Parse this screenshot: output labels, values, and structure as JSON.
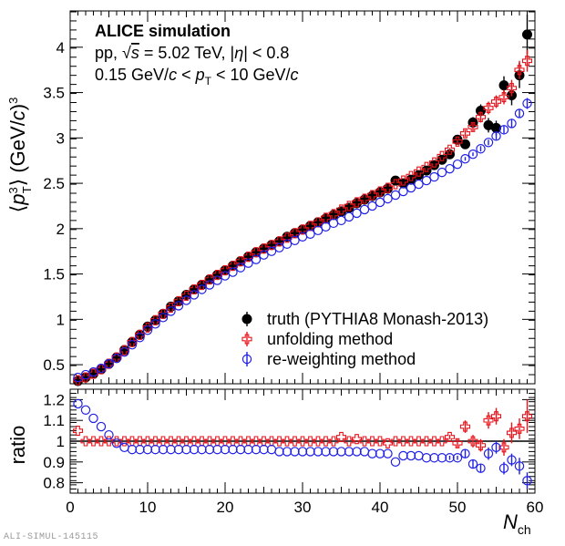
{
  "annotations": {
    "title": "ALICE simulation",
    "line1": "pp, √s = 5.02 TeV, |η| < 0.8",
    "line2": "0.15 GeV/c < pT < 10 GeV/c"
  },
  "footer_id": "ALI-SIMUL-145115",
  "chart_data": [
    {
      "type": "scatter",
      "panel": "main",
      "ylabel": "⟨pT³⟩ (GeV/c)³",
      "xlim": [
        0,
        60
      ],
      "ylim": [
        0.29,
        4.4
      ],
      "x_ticks": [
        0,
        10,
        20,
        30,
        40,
        50,
        60
      ],
      "y_ticks": [
        0.5,
        1,
        1.5,
        2,
        2.5,
        3,
        3.5,
        4
      ],
      "y_tick_labels": [
        "0.5",
        "1",
        "1.5",
        "2",
        "2.5",
        "3",
        "3.5",
        "4"
      ],
      "legend_position": "bottom-right",
      "series": [
        {
          "name": "truth (PYTHIA8 Monash-2013)",
          "marker": "filled-circle",
          "color": "#000000",
          "x": [
            1,
            2,
            3,
            4,
            5,
            6,
            7,
            8,
            9,
            10,
            11,
            12,
            13,
            14,
            15,
            16,
            17,
            18,
            19,
            20,
            21,
            22,
            23,
            24,
            25,
            26,
            27,
            28,
            29,
            30,
            31,
            32,
            33,
            34,
            35,
            36,
            37,
            38,
            39,
            40,
            41,
            42,
            43,
            44,
            45,
            46,
            47,
            48,
            49,
            50,
            51,
            52,
            53,
            54,
            55,
            56,
            57,
            58,
            59
          ],
          "y": [
            0.32,
            0.36,
            0.4,
            0.45,
            0.51,
            0.58,
            0.66,
            0.75,
            0.83,
            0.92,
            0.99,
            1.06,
            1.14,
            1.2,
            1.27,
            1.33,
            1.38,
            1.44,
            1.49,
            1.54,
            1.59,
            1.64,
            1.69,
            1.74,
            1.78,
            1.82,
            1.86,
            1.91,
            1.95,
            1.99,
            2.03,
            2.07,
            2.11,
            2.15,
            2.19,
            2.23,
            2.28,
            2.32,
            2.36,
            2.4,
            2.44,
            2.53,
            2.5,
            2.54,
            2.59,
            2.64,
            2.7,
            2.76,
            2.82,
            2.98,
            2.93,
            3.17,
            3.3,
            3.14,
            3.11,
            3.58,
            3.47,
            3.69,
            4.14
          ],
          "yerr": [
            0,
            0,
            0,
            0,
            0,
            0,
            0,
            0,
            0,
            0,
            0,
            0,
            0,
            0,
            0,
            0,
            0,
            0,
            0,
            0,
            0,
            0,
            0,
            0,
            0,
            0,
            0,
            0,
            0,
            0,
            0,
            0,
            0,
            0,
            0,
            0,
            0,
            0,
            0,
            0,
            0,
            0,
            0,
            0,
            0,
            0,
            0,
            0,
            0.02,
            0.04,
            0.04,
            0.06,
            0.07,
            0.08,
            0.08,
            0.1,
            0.11,
            0.14,
            0.22
          ]
        },
        {
          "name": "unfolding method",
          "marker": "open-cross",
          "color": "#e8121b",
          "x": [
            1,
            2,
            3,
            4,
            5,
            6,
            7,
            8,
            9,
            10,
            11,
            12,
            13,
            14,
            15,
            16,
            17,
            18,
            19,
            20,
            21,
            22,
            23,
            24,
            25,
            26,
            27,
            28,
            29,
            30,
            31,
            32,
            33,
            34,
            35,
            36,
            37,
            38,
            39,
            40,
            41,
            42,
            43,
            44,
            45,
            46,
            47,
            48,
            49,
            50,
            51,
            52,
            53,
            54,
            55,
            56,
            57,
            58,
            59
          ],
          "y": [
            0.33,
            0.36,
            0.4,
            0.45,
            0.51,
            0.58,
            0.66,
            0.75,
            0.83,
            0.91,
            0.99,
            1.06,
            1.13,
            1.2,
            1.26,
            1.33,
            1.38,
            1.44,
            1.49,
            1.54,
            1.59,
            1.64,
            1.69,
            1.74,
            1.78,
            1.82,
            1.86,
            1.9,
            1.95,
            1.99,
            2.03,
            2.07,
            2.12,
            2.16,
            2.21,
            2.25,
            2.29,
            2.33,
            2.37,
            2.41,
            2.45,
            2.49,
            2.53,
            2.58,
            2.63,
            2.68,
            2.73,
            2.8,
            2.87,
            2.96,
            3.05,
            3.12,
            3.23,
            3.33,
            3.4,
            3.45,
            3.55,
            3.75,
            3.85
          ],
          "yerr": [
            0,
            0,
            0,
            0,
            0,
            0,
            0,
            0,
            0,
            0,
            0,
            0,
            0,
            0,
            0,
            0,
            0,
            0,
            0,
            0,
            0,
            0,
            0,
            0,
            0,
            0,
            0,
            0,
            0,
            0,
            0,
            0,
            0,
            0,
            0,
            0,
            0,
            0,
            0,
            0,
            0,
            0,
            0,
            0,
            0,
            0,
            0,
            0,
            0.02,
            0.03,
            0.04,
            0.05,
            0.06,
            0.07,
            0.07,
            0.08,
            0.09,
            0.1,
            0.12
          ]
        },
        {
          "name": "re-weighting method",
          "marker": "open-circle",
          "color": "#1f1fe6",
          "x": [
            1,
            2,
            3,
            4,
            5,
            6,
            7,
            8,
            9,
            10,
            11,
            12,
            13,
            14,
            15,
            16,
            17,
            18,
            19,
            20,
            21,
            22,
            23,
            24,
            25,
            26,
            27,
            28,
            29,
            30,
            31,
            32,
            33,
            34,
            35,
            36,
            37,
            38,
            39,
            40,
            41,
            42,
            43,
            44,
            45,
            46,
            47,
            48,
            49,
            50,
            51,
            52,
            53,
            54,
            55,
            56,
            57,
            58,
            59
          ],
          "y": [
            0.36,
            0.39,
            0.42,
            0.46,
            0.51,
            0.57,
            0.64,
            0.72,
            0.8,
            0.88,
            0.95,
            1.02,
            1.09,
            1.15,
            1.21,
            1.27,
            1.33,
            1.38,
            1.43,
            1.48,
            1.52,
            1.57,
            1.62,
            1.66,
            1.71,
            1.75,
            1.79,
            1.83,
            1.87,
            1.91,
            1.94,
            1.98,
            2.02,
            2.06,
            2.09,
            2.13,
            2.17,
            2.21,
            2.25,
            2.29,
            2.33,
            2.37,
            2.41,
            2.45,
            2.49,
            2.53,
            2.57,
            2.62,
            2.66,
            2.71,
            2.77,
            2.82,
            2.88,
            2.95,
            3.02,
            3.09,
            3.16,
            3.27,
            3.38
          ],
          "yerr": [
            0,
            0,
            0,
            0,
            0,
            0,
            0,
            0,
            0,
            0,
            0,
            0,
            0,
            0,
            0,
            0,
            0,
            0,
            0,
            0,
            0,
            0,
            0,
            0,
            0,
            0,
            0,
            0,
            0,
            0,
            0,
            0,
            0,
            0,
            0,
            0,
            0,
            0,
            0,
            0,
            0,
            0,
            0,
            0,
            0,
            0,
            0,
            0,
            0,
            0,
            0.02,
            0.02,
            0.03,
            0.03,
            0.04,
            0.04,
            0.05,
            0.05,
            0.06
          ]
        }
      ]
    },
    {
      "type": "scatter",
      "panel": "ratio",
      "xlabel": "Nch",
      "ylabel": "ratio",
      "xlim": [
        0,
        60
      ],
      "ylim": [
        0.75,
        1.25
      ],
      "x_ticks": [
        0,
        10,
        20,
        30,
        40,
        50,
        60
      ],
      "x_tick_labels": [
        "0",
        "10",
        "20",
        "30",
        "40",
        "50",
        "60"
      ],
      "y_ticks": [
        0.8,
        0.9,
        1,
        1.1,
        1.2
      ],
      "y_tick_labels": [
        "0.8",
        "0.9",
        "1",
        "1.1",
        "1.2"
      ],
      "reference_line": 1.0,
      "series": [
        {
          "name": "unfolding method",
          "marker": "open-cross",
          "color": "#e8121b",
          "x": [
            1,
            2,
            3,
            4,
            5,
            6,
            7,
            8,
            9,
            10,
            11,
            12,
            13,
            14,
            15,
            16,
            17,
            18,
            19,
            20,
            21,
            22,
            23,
            24,
            25,
            26,
            27,
            28,
            29,
            30,
            31,
            32,
            33,
            34,
            35,
            36,
            37,
            38,
            39,
            40,
            41,
            42,
            43,
            44,
            45,
            46,
            47,
            48,
            49,
            50,
            51,
            52,
            53,
            54,
            55,
            56,
            57,
            58,
            59
          ],
          "y": [
            1.05,
            1.0,
            1.0,
            1.0,
            1.0,
            1.0,
            1.0,
            1.0,
            1.0,
            1.0,
            1.0,
            1.0,
            1.0,
            1.0,
            1.0,
            1.0,
            1.0,
            1.0,
            1.0,
            1.0,
            1.0,
            1.0,
            1.0,
            1.0,
            1.0,
            1.0,
            1.0,
            1.0,
            1.0,
            1.0,
            1.0,
            1.0,
            1.0,
            1.0,
            1.02,
            1.0,
            1.01,
            1.0,
            1.0,
            1.0,
            0.99,
            1.0,
            1.0,
            1.0,
            1.0,
            1.0,
            1.0,
            1.0,
            1.02,
            0.99,
            1.07,
            1.0,
            0.98,
            1.1,
            1.12,
            0.97,
            1.04,
            1.06,
            1.12
          ],
          "yerr": [
            0,
            0,
            0,
            0,
            0,
            0,
            0,
            0,
            0,
            0,
            0,
            0,
            0,
            0,
            0,
            0,
            0,
            0,
            0,
            0,
            0,
            0,
            0,
            0,
            0,
            0,
            0,
            0,
            0,
            0,
            0,
            0,
            0,
            0,
            0,
            0,
            0,
            0,
            0,
            0,
            0,
            0,
            0,
            0,
            0,
            0,
            0,
            0,
            0.01,
            0.02,
            0.03,
            0.03,
            0.03,
            0.04,
            0.04,
            0.04,
            0.05,
            0.05,
            0.08
          ]
        },
        {
          "name": "re-weighting method",
          "marker": "open-circle",
          "color": "#1f1fe6",
          "x": [
            1,
            2,
            3,
            4,
            5,
            6,
            7,
            8,
            9,
            10,
            11,
            12,
            13,
            14,
            15,
            16,
            17,
            18,
            19,
            20,
            21,
            22,
            23,
            24,
            25,
            26,
            27,
            28,
            29,
            30,
            31,
            32,
            33,
            34,
            35,
            36,
            37,
            38,
            39,
            40,
            41,
            42,
            43,
            44,
            45,
            46,
            47,
            48,
            49,
            50,
            51,
            52,
            53,
            54,
            55,
            56,
            57,
            58,
            59
          ],
          "y": [
            1.18,
            1.15,
            1.11,
            1.07,
            1.03,
            0.99,
            0.97,
            0.96,
            0.96,
            0.96,
            0.96,
            0.96,
            0.96,
            0.96,
            0.96,
            0.96,
            0.96,
            0.96,
            0.96,
            0.96,
            0.96,
            0.96,
            0.96,
            0.96,
            0.96,
            0.96,
            0.95,
            0.95,
            0.95,
            0.95,
            0.95,
            0.95,
            0.95,
            0.95,
            0.95,
            0.95,
            0.95,
            0.95,
            0.94,
            0.94,
            0.94,
            0.9,
            0.93,
            0.93,
            0.93,
            0.92,
            0.92,
            0.92,
            0.92,
            0.92,
            0.94,
            0.89,
            0.87,
            0.94,
            0.97,
            0.87,
            0.91,
            0.88,
            0.81
          ],
          "yerr": [
            0,
            0,
            0,
            0,
            0,
            0,
            0,
            0,
            0,
            0,
            0,
            0,
            0,
            0,
            0,
            0,
            0,
            0,
            0,
            0,
            0,
            0,
            0,
            0,
            0,
            0,
            0,
            0,
            0,
            0,
            0,
            0,
            0,
            0,
            0,
            0,
            0,
            0,
            0,
            0,
            0,
            0,
            0,
            0,
            0,
            0,
            0,
            0,
            0.01,
            0.01,
            0.02,
            0.02,
            0.02,
            0.03,
            0.03,
            0.03,
            0.03,
            0.04,
            0.04
          ]
        }
      ]
    }
  ]
}
